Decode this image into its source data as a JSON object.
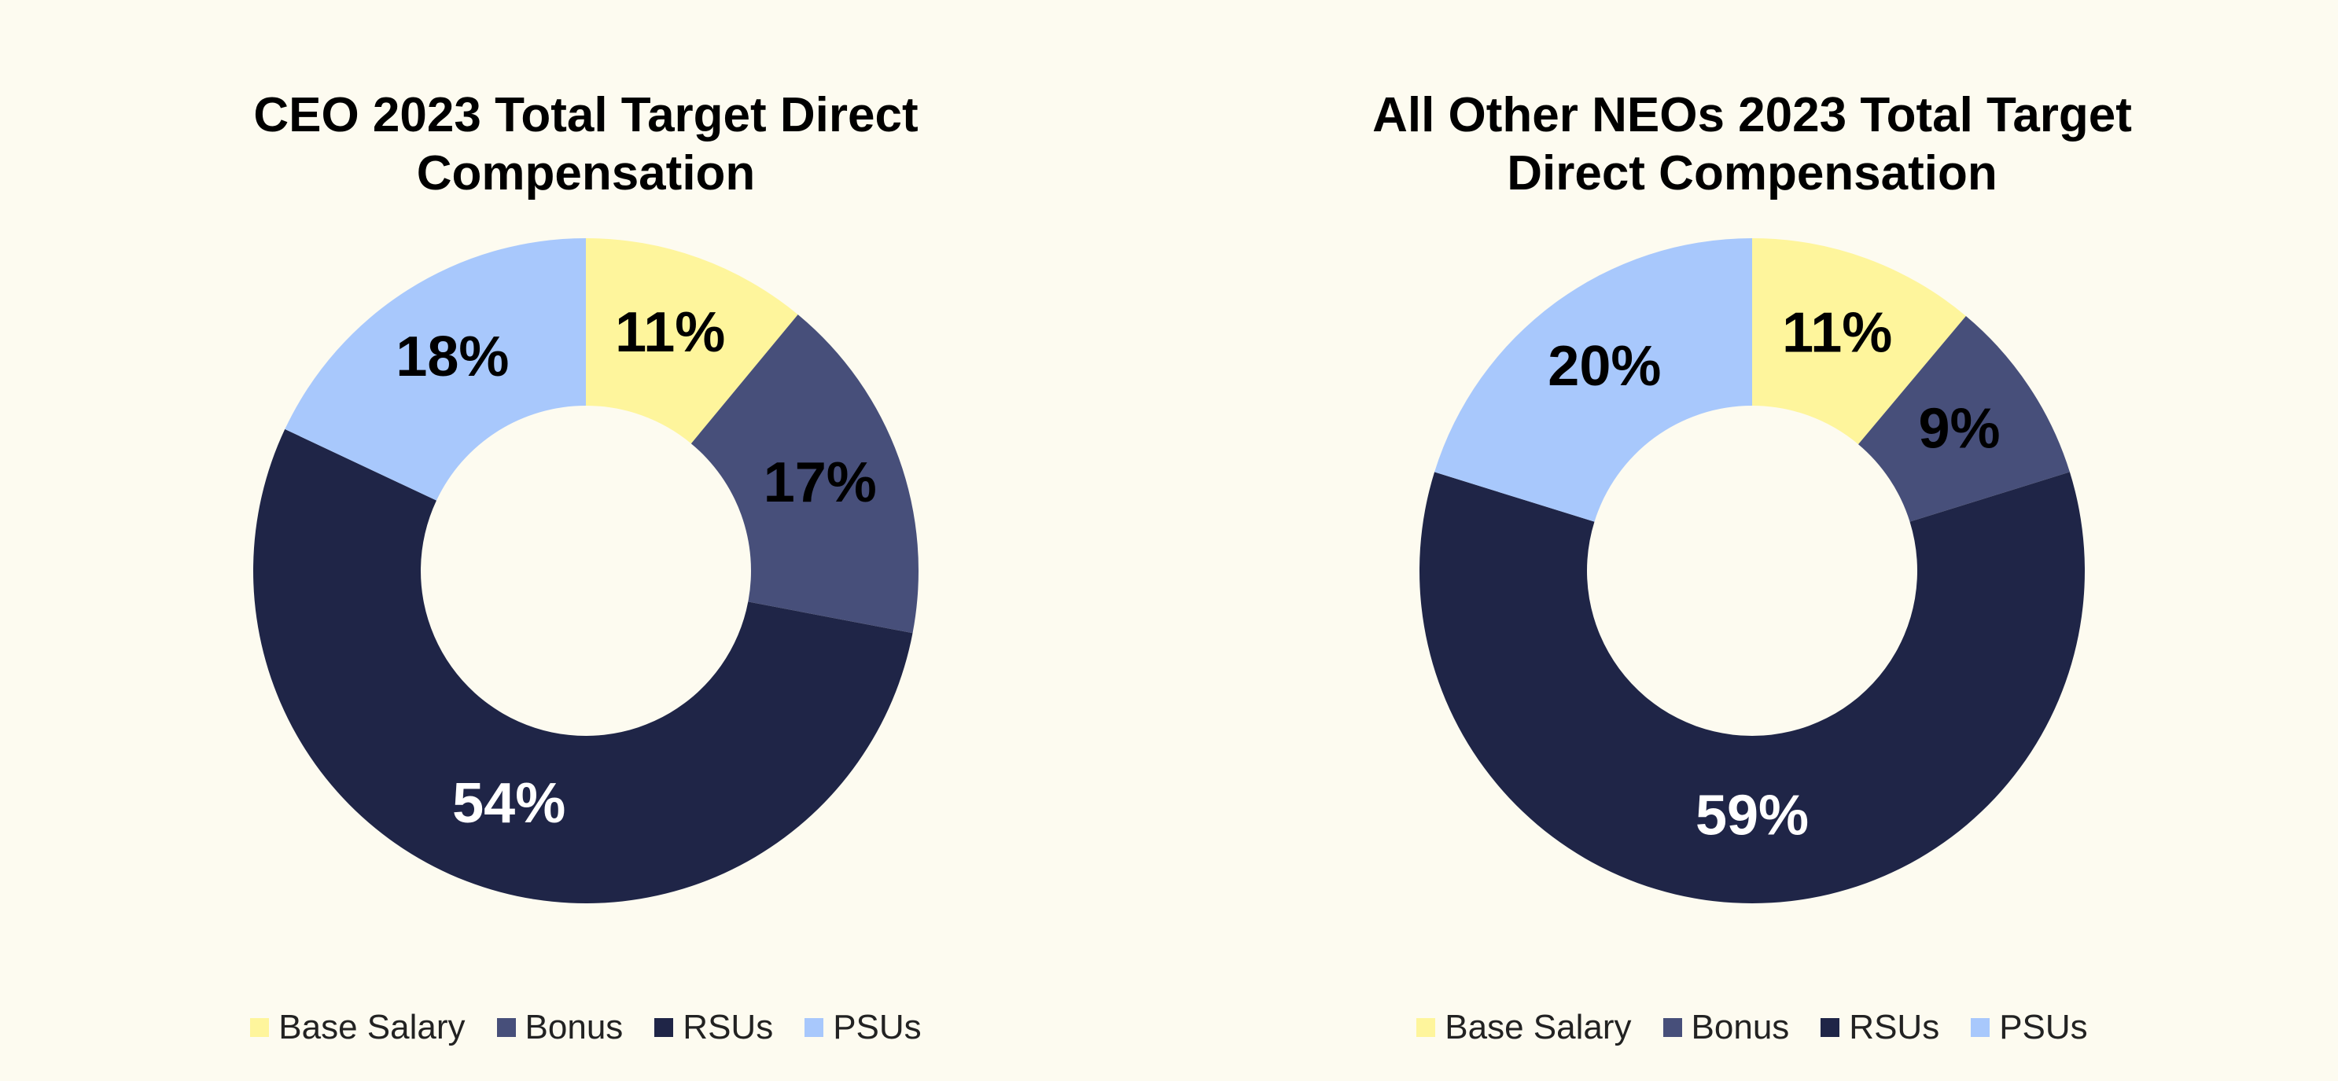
{
  "chart_data": [
    {
      "type": "donut",
      "title": "CEO 2023 Total Target Direct Compensation",
      "categories": [
        "Base Salary",
        "Bonus",
        "RSUs",
        "PSUs"
      ],
      "values": [
        11,
        17,
        54,
        18
      ],
      "value_labels": [
        "11%",
        "17%",
        "54%",
        "18%"
      ],
      "colors": [
        "#fef59c",
        "#474f7a",
        "#1f2547",
        "#a8c8fc"
      ]
    },
    {
      "type": "donut",
      "title": "All Other NEOs 2023 Total Target Direct Compensation",
      "categories": [
        "Base Salary",
        "Bonus",
        "RSUs",
        "PSUs"
      ],
      "values": [
        11,
        9,
        59,
        20
      ],
      "value_labels": [
        "11%",
        "9%",
        "59%",
        "20%"
      ],
      "colors": [
        "#fef59c",
        "#474f7a",
        "#1f2547",
        "#a8c8fc"
      ]
    }
  ]
}
